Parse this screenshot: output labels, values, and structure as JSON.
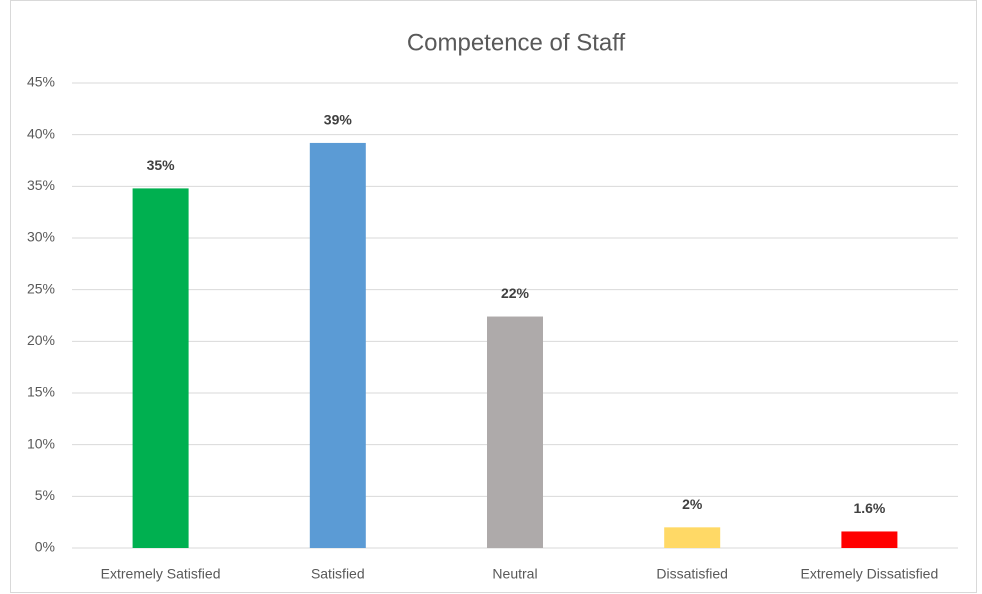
{
  "chart_data": {
    "type": "bar",
    "title": "Competence of Staff",
    "categories": [
      "Extremely Satisfied",
      "Satisfied",
      "Neutral",
      "Dissatisfied",
      "Extremely Dissatisfied"
    ],
    "values": [
      34.8,
      39.2,
      22.4,
      2,
      1.6
    ],
    "value_labels": [
      "35%",
      "39%",
      "22%",
      "2%",
      "1.6%"
    ],
    "colors": [
      "#00b050",
      "#5b9bd5",
      "#aeaaaa",
      "#ffd966",
      "#ff0000"
    ],
    "ylim": [
      0,
      45
    ],
    "yticks": [
      {
        "value": 0,
        "label": "0%"
      },
      {
        "value": 5,
        "label": "5%"
      },
      {
        "value": 10,
        "label": "10%"
      },
      {
        "value": 15,
        "label": "15%"
      },
      {
        "value": 20,
        "label": "20%"
      },
      {
        "value": 25,
        "label": "25%"
      },
      {
        "value": 30,
        "label": "30%"
      },
      {
        "value": 35,
        "label": "35%"
      },
      {
        "value": 40,
        "label": "40%"
      },
      {
        "value": 45,
        "label": "45%"
      }
    ],
    "grid": true
  }
}
